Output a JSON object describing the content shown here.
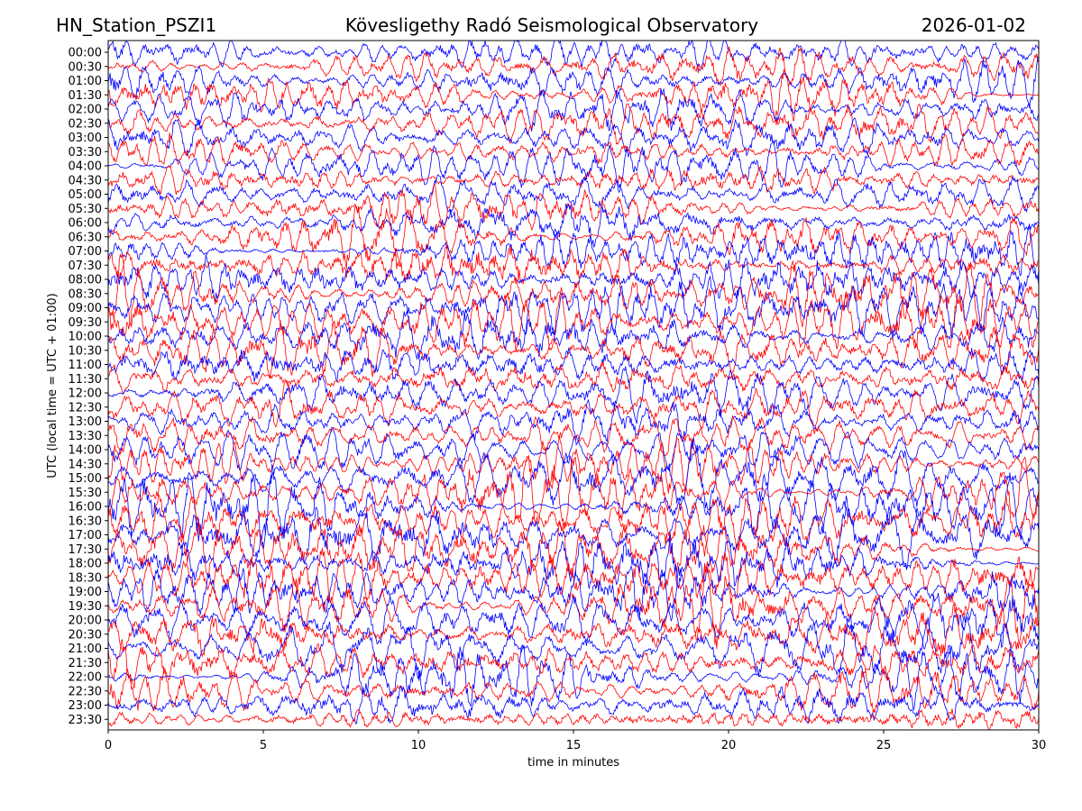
{
  "header": {
    "station": "HN_Station_PSZI1",
    "observatory": "Kövesligethy Radó Seismological Observatory",
    "date": "2026-01-02"
  },
  "chart_data": {
    "type": "line",
    "subtype": "helicorder",
    "xlabel": "time in minutes",
    "ylabel": "UTC (local time = UTC + 01:00)",
    "xlim": [
      0,
      30
    ],
    "x_ticks": [
      0,
      5,
      10,
      15,
      20,
      25,
      30
    ],
    "y_tick_labels": [
      "00:00",
      "00:30",
      "01:00",
      "01:30",
      "02:00",
      "02:30",
      "03:00",
      "03:30",
      "04:00",
      "04:30",
      "05:00",
      "05:30",
      "06:00",
      "06:30",
      "07:00",
      "07:30",
      "08:00",
      "08:30",
      "09:00",
      "09:30",
      "10:00",
      "10:30",
      "11:00",
      "11:30",
      "12:00",
      "12:30",
      "13:00",
      "13:30",
      "14:00",
      "14:30",
      "15:00",
      "15:30",
      "16:00",
      "16:30",
      "17:00",
      "17:30",
      "18:00",
      "18:30",
      "19:00",
      "19:30",
      "20:00",
      "20:30",
      "21:00",
      "21:30",
      "22:00",
      "22:30",
      "23:00",
      "23:30"
    ],
    "trace_colors": [
      "#0000ff",
      "#ff0000"
    ],
    "trace_color_pattern": "alternating blue/red per half-hour row, starting blue at 00:00",
    "relative_amplitude_per_row": [
      1.0,
      1.1,
      1.15,
      1.15,
      1.15,
      1.15,
      1.1,
      0.9,
      0.95,
      0.95,
      1.0,
      1.0,
      1.15,
      1.25,
      1.35,
      1.45,
      1.5,
      1.5,
      1.55,
      1.55,
      1.5,
      1.4,
      1.3,
      1.2,
      1.15,
      1.15,
      1.1,
      1.05,
      1.05,
      1.1,
      1.3,
      1.45,
      1.55,
      1.6,
      1.6,
      1.6,
      1.6,
      1.6,
      1.55,
      1.5,
      1.5,
      1.45,
      1.4,
      1.35,
      1.25,
      1.15,
      1.0,
      0.9
    ],
    "grid": false
  }
}
